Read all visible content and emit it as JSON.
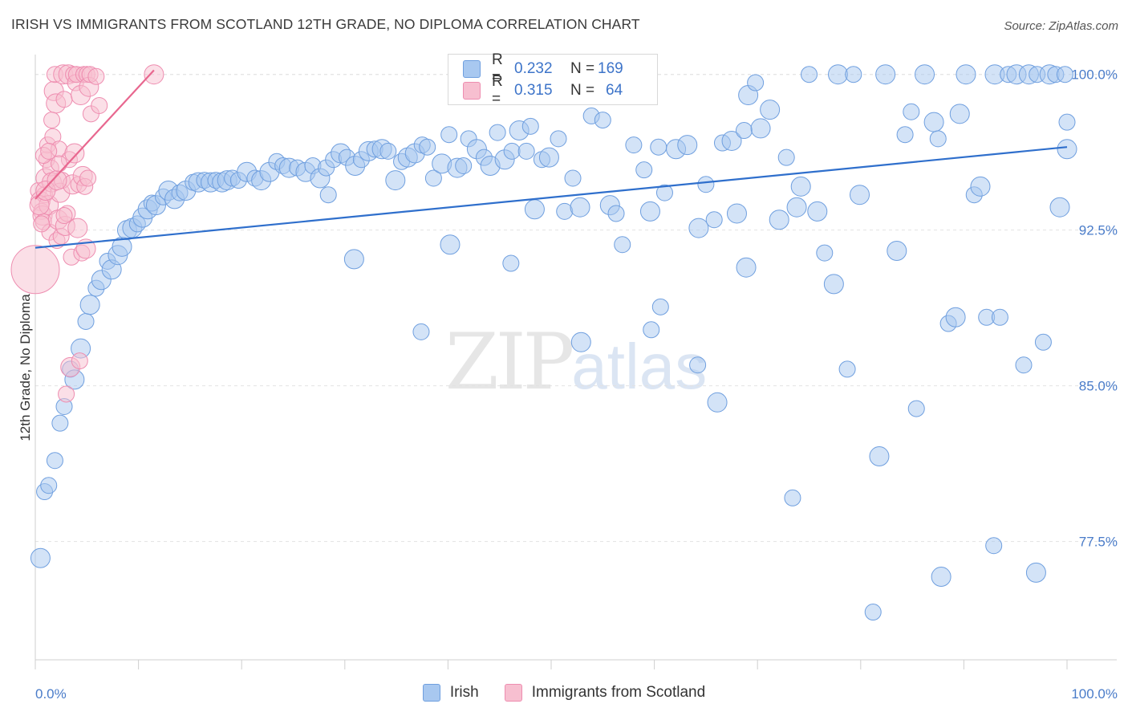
{
  "title": "IRISH VS IMMIGRANTS FROM SCOTLAND 12TH GRADE, NO DIPLOMA CORRELATION CHART",
  "source": "Source: ZipAtlas.com",
  "watermark": {
    "zip": "ZIP",
    "atlas": "atlas"
  },
  "colors": {
    "irish_fill": "#a8c8f0",
    "irish_stroke": "#6f9fdf",
    "irish_line": "#2f6fcc",
    "scot_fill": "#f7bfd0",
    "scot_stroke": "#ee8db0",
    "scot_line": "#e8678f"
  },
  "legend": {
    "rows": [
      {
        "r_label": "R =",
        "r_value": "0.232",
        "n_label": "N =",
        "n_value": "169"
      },
      {
        "r_label": "R =",
        "r_value": "0.315",
        "n_label": "N =",
        "n_value": "64"
      }
    ]
  },
  "bottom_legend": [
    "Irish",
    "Immigrants from Scotland"
  ],
  "chart_data": {
    "type": "scatter",
    "title": "IRISH VS IMMIGRANTS FROM SCOTLAND 12TH GRADE, NO DIPLOMA CORRELATION CHART",
    "xlabel": "",
    "ylabel": "12th Grade, No Diploma",
    "xlim": [
      0,
      100
    ],
    "ylim": [
      71.8,
      100.8
    ],
    "x_tick_labels": [
      "0.0%",
      "100.0%"
    ],
    "y_ticks": [
      77.5,
      85.0,
      92.5,
      100.0
    ],
    "y_tick_labels": [
      "77.5%",
      "85.0%",
      "92.5%",
      "100.0%"
    ],
    "grid": "horizontal dashed",
    "legend_position": "top-center",
    "series": [
      {
        "name": "Irish",
        "r": 0.232,
        "n": 169,
        "trend": {
          "x": [
            0,
            100
          ],
          "y": [
            91.65,
            96.5
          ]
        },
        "points": [
          [
            0.5,
            76.7,
            12
          ],
          [
            0.9,
            79.9,
            10
          ],
          [
            1.3,
            80.2,
            10
          ],
          [
            1.9,
            81.4,
            10
          ],
          [
            2.4,
            83.2,
            10
          ],
          [
            2.8,
            84.0,
            10
          ],
          [
            3.4,
            85.8,
            10
          ],
          [
            3.8,
            85.3,
            12
          ],
          [
            4.4,
            86.8,
            12
          ],
          [
            4.9,
            88.1,
            10
          ],
          [
            5.3,
            88.9,
            12
          ],
          [
            5.9,
            89.7,
            10
          ],
          [
            6.4,
            90.1,
            12
          ],
          [
            7.0,
            91.0,
            10
          ],
          [
            7.4,
            90.6,
            12
          ],
          [
            8.0,
            91.3,
            12
          ],
          [
            8.4,
            91.7,
            12
          ],
          [
            8.9,
            92.5,
            12
          ],
          [
            9.4,
            92.6,
            12
          ],
          [
            9.9,
            92.8,
            10
          ],
          [
            10.4,
            93.1,
            12
          ],
          [
            10.9,
            93.5,
            12
          ],
          [
            11.3,
            93.8,
            10
          ],
          [
            11.7,
            93.7,
            12
          ],
          [
            12.4,
            94.1,
            10
          ],
          [
            12.9,
            94.4,
            12
          ],
          [
            13.5,
            94.0,
            12
          ],
          [
            14.0,
            94.3,
            10
          ],
          [
            14.6,
            94.4,
            12
          ],
          [
            15.3,
            94.8,
            10
          ],
          [
            15.8,
            94.8,
            12
          ],
          [
            16.4,
            94.9,
            10
          ],
          [
            17.0,
            94.8,
            12
          ],
          [
            17.5,
            94.9,
            10
          ],
          [
            18.1,
            94.8,
            12
          ],
          [
            18.6,
            94.9,
            12
          ],
          [
            19.1,
            95.0,
            10
          ],
          [
            19.7,
            94.9,
            10
          ],
          [
            20.5,
            95.3,
            12
          ],
          [
            21.3,
            95.0,
            10
          ],
          [
            21.9,
            94.9,
            12
          ],
          [
            22.7,
            95.3,
            12
          ],
          [
            23.4,
            95.8,
            10
          ],
          [
            24.0,
            95.6,
            10
          ],
          [
            24.6,
            95.5,
            12
          ],
          [
            25.4,
            95.5,
            10
          ],
          [
            26.2,
            95.3,
            12
          ],
          [
            26.9,
            95.6,
            10
          ],
          [
            27.6,
            95.0,
            12
          ],
          [
            28.2,
            95.5,
            10
          ],
          [
            28.9,
            95.9,
            10
          ],
          [
            29.6,
            96.2,
            12
          ],
          [
            30.2,
            96.0,
            10
          ],
          [
            31.0,
            95.6,
            12
          ],
          [
            31.6,
            95.9,
            10
          ],
          [
            32.3,
            96.3,
            12
          ],
          [
            32.9,
            96.4,
            10
          ],
          [
            33.6,
            96.4,
            12
          ],
          [
            34.2,
            96.3,
            10
          ],
          [
            34.9,
            94.9,
            12
          ],
          [
            35.5,
            95.8,
            10
          ],
          [
            36.1,
            96.0,
            12
          ],
          [
            36.8,
            96.2,
            12
          ],
          [
            37.5,
            96.6,
            10
          ],
          [
            38.0,
            96.5,
            10
          ],
          [
            38.6,
            95.0,
            10
          ],
          [
            39.4,
            95.7,
            12
          ],
          [
            40.1,
            97.1,
            10
          ],
          [
            40.9,
            95.5,
            12
          ],
          [
            41.5,
            95.6,
            10
          ],
          [
            42.0,
            96.9,
            10
          ],
          [
            42.8,
            96.4,
            12
          ],
          [
            43.5,
            96.0,
            10
          ],
          [
            44.1,
            95.6,
            12
          ],
          [
            44.8,
            97.2,
            10
          ],
          [
            45.5,
            95.9,
            12
          ],
          [
            46.2,
            96.3,
            10
          ],
          [
            46.9,
            97.3,
            12
          ],
          [
            47.6,
            96.3,
            10
          ],
          [
            48.0,
            97.5,
            10
          ],
          [
            48.4,
            93.5,
            12
          ],
          [
            49.1,
            95.9,
            10
          ],
          [
            49.8,
            96.0,
            12
          ],
          [
            50.7,
            96.9,
            10
          ],
          [
            51.3,
            93.4,
            10
          ],
          [
            52.1,
            95.0,
            10
          ],
          [
            52.8,
            93.6,
            12
          ],
          [
            53.9,
            98.0,
            10
          ],
          [
            54.6,
            100.0,
            12
          ],
          [
            55.0,
            97.8,
            10
          ],
          [
            55.7,
            93.7,
            12
          ],
          [
            56.3,
            93.3,
            10
          ],
          [
            56.9,
            91.8,
            10
          ],
          [
            58.0,
            96.6,
            10
          ],
          [
            59.0,
            95.4,
            10
          ],
          [
            59.6,
            93.4,
            12
          ],
          [
            60.4,
            96.5,
            10
          ],
          [
            61.0,
            94.3,
            10
          ],
          [
            62.1,
            96.4,
            12
          ],
          [
            63.2,
            96.6,
            12
          ],
          [
            64.3,
            92.6,
            12
          ],
          [
            65.0,
            94.7,
            10
          ],
          [
            65.8,
            93.0,
            10
          ],
          [
            66.6,
            96.7,
            10
          ],
          [
            67.5,
            96.8,
            12
          ],
          [
            68.0,
            93.3,
            12
          ],
          [
            68.7,
            97.3,
            10
          ],
          [
            69.1,
            99.0,
            12
          ],
          [
            69.8,
            99.6,
            10
          ],
          [
            70.3,
            97.4,
            12
          ],
          [
            71.2,
            98.3,
            12
          ],
          [
            72.1,
            93.0,
            12
          ],
          [
            72.8,
            96.0,
            10
          ],
          [
            73.8,
            93.6,
            12
          ],
          [
            74.2,
            94.6,
            12
          ],
          [
            75.0,
            100.0,
            10
          ],
          [
            75.8,
            93.4,
            12
          ],
          [
            76.5,
            91.4,
            10
          ],
          [
            77.4,
            89.9,
            12
          ],
          [
            77.8,
            100.0,
            12
          ],
          [
            78.7,
            85.8,
            10
          ],
          [
            79.3,
            100.0,
            10
          ],
          [
            79.9,
            94.2,
            12
          ],
          [
            81.2,
            74.1,
            10
          ],
          [
            81.8,
            81.6,
            12
          ],
          [
            82.4,
            100.0,
            12
          ],
          [
            83.5,
            91.5,
            12
          ],
          [
            84.3,
            97.1,
            10
          ],
          [
            84.9,
            98.2,
            10
          ],
          [
            85.4,
            83.9,
            10
          ],
          [
            86.2,
            100.0,
            12
          ],
          [
            87.1,
            97.7,
            12
          ],
          [
            87.5,
            96.9,
            10
          ],
          [
            88.5,
            88.0,
            10
          ],
          [
            89.2,
            88.3,
            12
          ],
          [
            90.2,
            100.0,
            12
          ],
          [
            91.0,
            94.2,
            10
          ],
          [
            91.6,
            94.6,
            12
          ],
          [
            92.2,
            88.3,
            10
          ],
          [
            93.0,
            100.0,
            12
          ],
          [
            93.5,
            88.3,
            10
          ],
          [
            94.3,
            100.0,
            10
          ],
          [
            95.1,
            100.0,
            12
          ],
          [
            95.8,
            86.0,
            10
          ],
          [
            96.3,
            100.0,
            12
          ],
          [
            97.1,
            100.0,
            10
          ],
          [
            97.7,
            87.1,
            10
          ],
          [
            98.3,
            100.0,
            12
          ],
          [
            98.9,
            100.0,
            10
          ],
          [
            99.3,
            93.6,
            12
          ],
          [
            99.8,
            100.0,
            10
          ],
          [
            28.4,
            94.2,
            10
          ],
          [
            40.2,
            91.8,
            12
          ],
          [
            46.1,
            90.9,
            10
          ],
          [
            52.9,
            87.1,
            12
          ],
          [
            59.7,
            87.7,
            10
          ],
          [
            66.1,
            84.2,
            12
          ],
          [
            73.4,
            79.6,
            10
          ],
          [
            87.8,
            75.8,
            12
          ],
          [
            92.9,
            77.3,
            10
          ],
          [
            97.0,
            76.0,
            12
          ],
          [
            100.0,
            96.4,
            12
          ],
          [
            100.0,
            97.7,
            10
          ],
          [
            89.6,
            98.1,
            12
          ],
          [
            37.4,
            87.6,
            10
          ],
          [
            30.9,
            91.1,
            12
          ],
          [
            60.6,
            88.8,
            10
          ],
          [
            64.2,
            86.0,
            10
          ],
          [
            68.9,
            90.7,
            12
          ]
        ]
      },
      {
        "name": "Immigrants from Scotland",
        "r": 0.315,
        "n": 64,
        "trend": {
          "x": [
            0,
            11.5
          ],
          "y": [
            94.0,
            100.2
          ]
        },
        "points": [
          [
            0.0,
            90.6,
            30
          ],
          [
            0.3,
            94.4,
            10
          ],
          [
            0.5,
            93.9,
            12
          ],
          [
            0.6,
            93.4,
            10
          ],
          [
            0.7,
            93.2,
            12
          ],
          [
            0.8,
            92.9,
            10
          ],
          [
            0.9,
            94.2,
            10
          ],
          [
            1.0,
            95.0,
            12
          ],
          [
            1.1,
            95.9,
            10
          ],
          [
            1.2,
            96.6,
            10
          ],
          [
            1.3,
            93.7,
            12
          ],
          [
            1.4,
            92.4,
            10
          ],
          [
            1.5,
            95.5,
            10
          ],
          [
            1.6,
            94.8,
            12
          ],
          [
            1.7,
            97.0,
            10
          ],
          [
            1.8,
            99.2,
            12
          ],
          [
            1.9,
            100.0,
            10
          ],
          [
            2.0,
            98.6,
            12
          ],
          [
            2.1,
            92.0,
            10
          ],
          [
            2.2,
            93.0,
            12
          ],
          [
            2.3,
            96.4,
            10
          ],
          [
            2.4,
            94.3,
            12
          ],
          [
            2.5,
            92.2,
            10
          ],
          [
            2.6,
            94.9,
            10
          ],
          [
            2.7,
            100.0,
            12
          ],
          [
            2.8,
            98.8,
            10
          ],
          [
            2.9,
            92.7,
            12
          ],
          [
            3.0,
            84.6,
            10
          ],
          [
            3.1,
            93.3,
            10
          ],
          [
            3.2,
            100.0,
            12
          ],
          [
            3.3,
            95.9,
            10
          ],
          [
            3.4,
            85.9,
            12
          ],
          [
            3.5,
            91.2,
            10
          ],
          [
            3.6,
            94.7,
            12
          ],
          [
            3.7,
            100.0,
            10
          ],
          [
            3.8,
            96.2,
            12
          ],
          [
            3.9,
            99.6,
            10
          ],
          [
            4.0,
            100.0,
            10
          ],
          [
            4.1,
            92.6,
            12
          ],
          [
            4.2,
            94.7,
            10
          ],
          [
            4.3,
            86.2,
            10
          ],
          [
            4.4,
            99.0,
            12
          ],
          [
            4.5,
            91.4,
            10
          ],
          [
            4.6,
            95.1,
            12
          ],
          [
            4.7,
            100.0,
            10
          ],
          [
            4.8,
            94.6,
            10
          ],
          [
            4.9,
            91.6,
            12
          ],
          [
            5.0,
            100.0,
            10
          ],
          [
            5.1,
            95.0,
            10
          ],
          [
            5.2,
            99.4,
            12
          ],
          [
            5.3,
            100.0,
            10
          ],
          [
            5.4,
            98.1,
            10
          ],
          [
            6.2,
            98.5,
            10
          ],
          [
            11.5,
            100.0,
            12
          ],
          [
            5.9,
            99.9,
            10
          ],
          [
            0.4,
            93.7,
            12
          ],
          [
            0.6,
            92.8,
            10
          ],
          [
            0.8,
            96.1,
            10
          ],
          [
            1.0,
            94.4,
            12
          ],
          [
            1.3,
            96.3,
            10
          ],
          [
            1.6,
            97.8,
            10
          ],
          [
            2.1,
            94.9,
            12
          ],
          [
            2.3,
            95.7,
            10
          ],
          [
            2.8,
            93.2,
            10
          ]
        ]
      }
    ]
  }
}
